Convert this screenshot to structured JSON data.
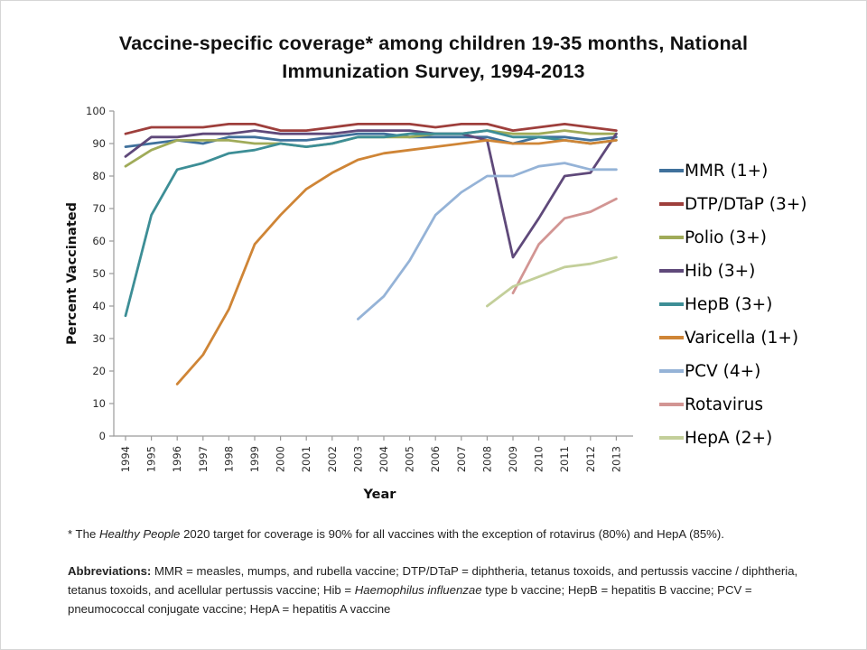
{
  "title": "Vaccine-specific coverage* among children 19-35 months, National Immunization Survey, 1994-2013",
  "chart_data": {
    "type": "line",
    "x": [
      1994,
      1995,
      1996,
      1997,
      1998,
      1999,
      2000,
      2001,
      2002,
      2003,
      2004,
      2005,
      2006,
      2007,
      2008,
      2009,
      2010,
      2011,
      2012,
      2013
    ],
    "series": [
      {
        "name": "MMR (1+)",
        "color": "#40719c",
        "values": [
          89,
          90,
          91,
          90,
          92,
          92,
          91,
          91,
          92,
          93,
          93,
          92,
          92,
          92,
          92,
          90,
          92,
          92,
          91,
          92
        ]
      },
      {
        "name": "DTP/DTaP (3+)",
        "color": "#9e3f3c",
        "values": [
          93,
          95,
          95,
          95,
          96,
          96,
          94,
          94,
          95,
          96,
          96,
          96,
          95,
          96,
          96,
          94,
          95,
          96,
          95,
          94
        ]
      },
      {
        "name": "Polio (3+)",
        "color": "#a0ab59",
        "values": [
          83,
          88,
          91,
          91,
          91,
          90,
          90,
          89,
          90,
          92,
          92,
          92,
          93,
          93,
          94,
          93,
          93,
          94,
          93,
          93
        ]
      },
      {
        "name": "Hib (3+)",
        "color": "#5f497a",
        "values": [
          86,
          92,
          92,
          93,
          93,
          94,
          93,
          93,
          93,
          94,
          94,
          94,
          93,
          93,
          91,
          55,
          67,
          80,
          81,
          93
        ]
      },
      {
        "name": "HepB (3+)",
        "color": "#3d8e96",
        "values": [
          37,
          68,
          82,
          84,
          87,
          88,
          90,
          89,
          90,
          92,
          92,
          93,
          93,
          93,
          94,
          92,
          92,
          91,
          90,
          91
        ]
      },
      {
        "name": "Varicella (1+)",
        "color": "#cf8536",
        "values": [
          null,
          null,
          16,
          25,
          39,
          59,
          68,
          76,
          81,
          85,
          87,
          88,
          89,
          90,
          91,
          90,
          90,
          91,
          90,
          91
        ]
      },
      {
        "name": "PCV (4+)",
        "color": "#95b3d7",
        "values": [
          null,
          null,
          null,
          null,
          null,
          null,
          null,
          null,
          null,
          36,
          43,
          54,
          68,
          75,
          80,
          80,
          83,
          84,
          82,
          82
        ]
      },
      {
        "name": "Rotavirus",
        "color": "#d29593",
        "values": [
          null,
          null,
          null,
          null,
          null,
          null,
          null,
          null,
          null,
          null,
          null,
          null,
          null,
          null,
          null,
          44,
          59,
          67,
          69,
          73
        ]
      },
      {
        "name": "HepA (2+)",
        "color": "#c3cf9a",
        "values": [
          null,
          null,
          null,
          null,
          null,
          null,
          null,
          null,
          null,
          null,
          null,
          null,
          null,
          null,
          40,
          46,
          49,
          52,
          53,
          55
        ]
      }
    ],
    "xlabel": "Year",
    "ylabel": "Percent Vaccinated",
    "ylim": [
      0,
      100
    ],
    "ytick_step": 10,
    "grid": false,
    "legend_position": "right"
  },
  "footnote": {
    "part1": "* The ",
    "italic": "Healthy People",
    "part2": " 2020 target for coverage is 90% for all vaccines with the exception of rotavirus (80%) and HepA (85%)."
  },
  "abbreviations": {
    "label": "Abbreviations:",
    "part1": " MMR = measles, mumps, and rubella vaccine; DTP/DTaP = diphtheria, tetanus toxoids, and pertussis vaccine / diphtheria, tetanus toxoids, and acellular pertussis vaccine; Hib = ",
    "italic": "Haemophilus influenzae",
    "part2": " type b vaccine; HepB = hepatitis B vaccine; PCV = pneumococcal conjugate vaccine; HepA = hepatitis A vaccine"
  }
}
